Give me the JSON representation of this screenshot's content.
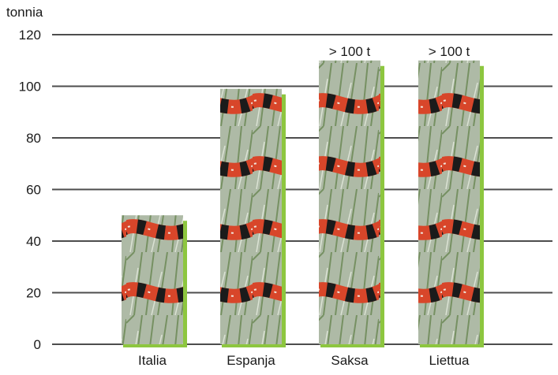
{
  "chart_data": {
    "type": "bar",
    "unit_label": "tonnia",
    "categories": [
      "Italia",
      "Espanja",
      "Saksa",
      "Liettua"
    ],
    "values": [
      50,
      99,
      110,
      110
    ],
    "annotations": [
      "",
      "",
      "> 100 t",
      "> 100 t"
    ],
    "ylim": [
      0,
      120
    ],
    "yticks": [
      0,
      20,
      40,
      60,
      80,
      100,
      120
    ],
    "grid": true,
    "legend": "none",
    "colors": {
      "gridline": "#4d4d4d",
      "bar_shadow": "#8dc63f",
      "text": "#1a1a1a",
      "bar_tones": [
        "#3f6b2a",
        "#d8462a",
        "#1b1b1b",
        "#c9d3c2"
      ]
    },
    "bar_fill": "snake-photo"
  }
}
